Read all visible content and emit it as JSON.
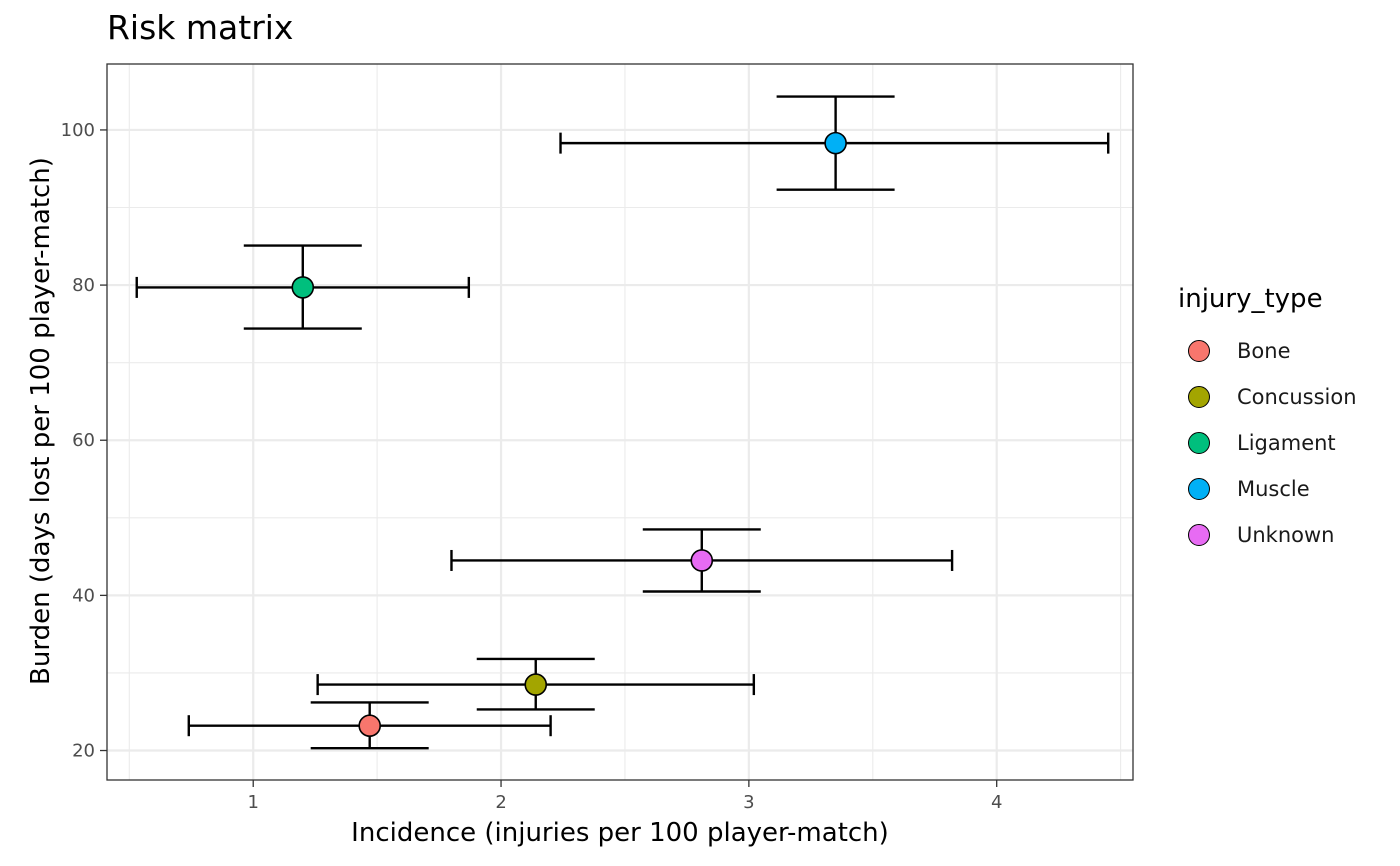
{
  "chart_data": {
    "type": "scatter",
    "title": "Risk matrix",
    "xlabel": "Incidence (injuries per 100 player-match)",
    "ylabel": "Burden (days lost per 100 player-match)",
    "xlim": [
      0.41,
      4.55
    ],
    "ylim": [
      16.2,
      108.5
    ],
    "x_ticks": [
      "1",
      "2",
      "3",
      "4"
    ],
    "y_ticks": [
      "20",
      "40",
      "60",
      "80",
      "100"
    ],
    "grid": true,
    "legend_title": "injury_type",
    "legend_position": "right",
    "series": [
      {
        "name": "Bone",
        "color": "#F8766D",
        "x": 1.47,
        "y": 23.2,
        "x_low": 0.74,
        "x_high": 2.2,
        "y_low": 20.3,
        "y_high": 26.2
      },
      {
        "name": "Concussion",
        "color": "#A3A500",
        "x": 2.14,
        "y": 28.5,
        "x_low": 1.26,
        "x_high": 3.02,
        "y_low": 25.3,
        "y_high": 31.8
      },
      {
        "name": "Ligament",
        "color": "#00BF7D",
        "x": 1.2,
        "y": 79.7,
        "x_low": 0.53,
        "x_high": 1.87,
        "y_low": 74.4,
        "y_high": 85.1
      },
      {
        "name": "Muscle",
        "color": "#00B0F6",
        "x": 3.35,
        "y": 98.3,
        "x_low": 2.24,
        "x_high": 4.45,
        "y_low": 92.3,
        "y_high": 104.3
      },
      {
        "name": "Unknown",
        "color": "#E76BF3",
        "x": 2.81,
        "y": 44.5,
        "x_low": 1.8,
        "x_high": 3.82,
        "y_low": 40.5,
        "y_high": 48.5
      }
    ]
  }
}
